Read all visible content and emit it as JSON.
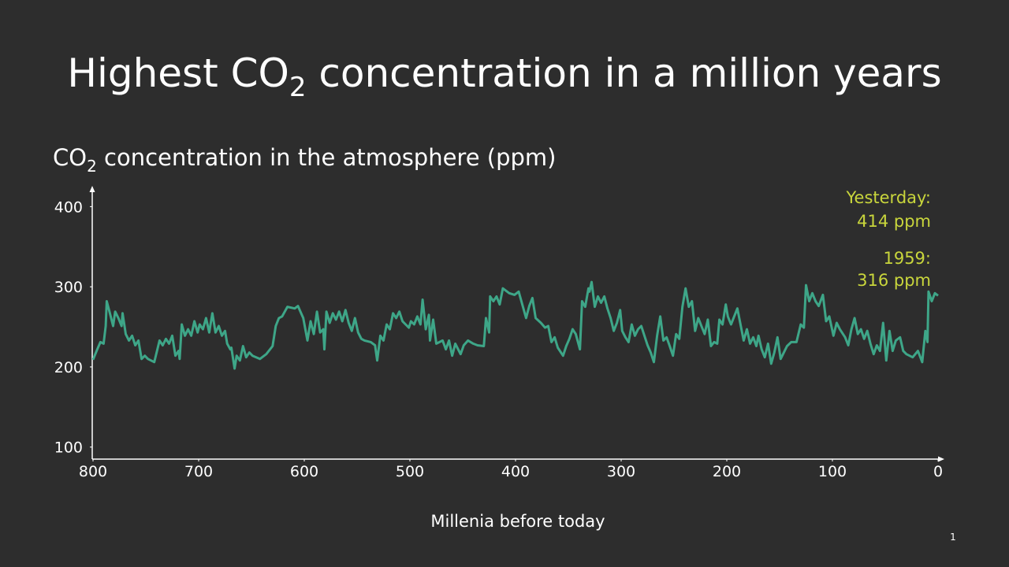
{
  "chart_data": {
    "type": "line",
    "title": [
      "Highest CO",
      "2",
      " concentration in a million years"
    ],
    "y_label": [
      "CO",
      "2",
      " concentration in the atmosphere (ppm)"
    ],
    "x_label": "Millenia before today",
    "annotations": [
      [
        "Yesterday:",
        "414 ppm"
      ],
      [
        "1959:",
        "316 ppm"
      ]
    ],
    "annotation_color": "#c9d63c",
    "page_number": "1",
    "xlim": [
      800,
      0
    ],
    "xticks": [
      800,
      700,
      600,
      500,
      400,
      300,
      200,
      100,
      0
    ],
    "ylim": [
      85,
      422
    ],
    "yticks": [
      100,
      200,
      300,
      400
    ],
    "grid": false,
    "x": [
      800,
      796,
      793,
      790,
      788,
      787,
      784,
      781,
      779,
      776,
      773,
      772,
      769,
      766,
      763,
      760,
      757,
      754,
      751,
      748,
      742,
      737,
      734,
      731,
      728,
      725,
      722,
      719,
      718,
      716,
      713,
      710,
      707,
      704,
      701,
      699,
      696,
      693,
      690,
      687,
      684,
      681,
      678,
      675,
      673,
      670,
      669,
      666,
      664,
      661,
      658,
      655,
      652,
      649,
      642,
      636,
      630,
      627,
      624,
      621,
      616,
      609,
      606,
      601,
      597,
      594,
      591,
      588,
      585,
      582,
      581,
      579,
      576,
      573,
      570,
      567,
      564,
      561,
      558,
      555,
      552,
      549,
      546,
      543,
      537,
      533,
      531,
      528,
      525,
      522,
      519,
      516,
      513,
      510,
      507,
      504,
      501,
      499,
      496,
      493,
      490,
      488,
      485,
      482,
      481,
      478,
      475,
      472,
      469,
      466,
      463,
      460,
      457,
      452,
      449,
      445,
      440,
      436,
      430,
      428,
      425,
      424,
      421,
      418,
      415,
      412,
      406,
      401,
      397,
      393,
      390,
      387,
      384,
      381,
      376,
      372,
      369,
      366,
      363,
      360,
      355,
      352,
      349,
      346,
      343,
      339,
      337,
      334,
      331,
      330,
      328,
      325,
      322,
      319,
      316,
      313,
      310,
      307,
      304,
      301,
      299,
      296,
      293,
      290,
      287,
      284,
      281,
      278,
      275,
      272,
      269,
      266,
      263,
      260,
      257,
      254,
      251,
      248,
      245,
      242,
      239,
      236,
      233,
      230,
      227,
      224,
      221,
      218,
      215,
      212,
      209,
      207,
      204,
      201,
      199,
      196,
      193,
      190,
      187,
      184,
      181,
      178,
      175,
      172,
      170,
      167,
      164,
      161,
      158,
      155,
      152,
      149,
      146,
      143,
      139,
      134,
      130,
      127,
      125,
      122,
      119,
      116,
      113,
      109,
      106,
      103,
      99,
      96,
      93,
      88,
      85,
      82,
      79,
      76,
      73,
      70,
      67,
      64,
      61,
      58,
      55,
      52,
      49,
      46,
      43,
      40,
      36,
      33,
      30,
      24,
      19,
      15,
      12,
      10,
      9,
      6,
      3,
      0
    ],
    "series": [
      {
        "color": "#3ea688",
        "values": [
          209,
          222,
          231,
          229,
          251,
          282,
          267,
          251,
          269,
          261,
          251,
          267,
          241,
          233,
          239,
          227,
          233,
          210,
          214,
          210,
          206,
          233,
          227,
          235,
          229,
          239,
          214,
          220,
          210,
          253,
          239,
          247,
          239,
          257,
          243,
          253,
          247,
          261,
          243,
          267,
          243,
          251,
          239,
          245,
          229,
          222,
          224,
          198,
          214,
          208,
          226,
          212,
          218,
          214,
          210,
          216,
          226,
          251,
          261,
          263,
          275,
          273,
          276,
          261,
          233,
          257,
          241,
          269,
          243,
          247,
          222,
          269,
          255,
          267,
          259,
          269,
          257,
          271,
          255,
          245,
          261,
          243,
          235,
          233,
          231,
          227,
          208,
          239,
          233,
          253,
          247,
          267,
          261,
          269,
          257,
          253,
          249,
          257,
          253,
          263,
          253,
          284,
          247,
          265,
          233,
          259,
          229,
          231,
          233,
          222,
          233,
          214,
          229,
          216,
          227,
          233,
          229,
          227,
          226,
          261,
          243,
          288,
          282,
          288,
          278,
          298,
          292,
          290,
          294,
          275,
          261,
          276,
          286,
          261,
          255,
          249,
          251,
          231,
          237,
          224,
          214,
          226,
          235,
          247,
          241,
          222,
          282,
          275,
          298,
          294,
          306,
          275,
          288,
          280,
          288,
          273,
          261,
          245,
          255,
          271,
          245,
          237,
          231,
          253,
          239,
          247,
          251,
          239,
          227,
          218,
          206,
          239,
          263,
          233,
          237,
          226,
          214,
          241,
          235,
          275,
          298,
          275,
          282,
          245,
          261,
          251,
          241,
          259,
          226,
          231,
          229,
          259,
          253,
          278,
          263,
          253,
          263,
          273,
          253,
          233,
          247,
          229,
          237,
          226,
          239,
          222,
          212,
          229,
          204,
          218,
          237,
          210,
          218,
          226,
          231,
          231,
          253,
          249,
          302,
          282,
          292,
          282,
          276,
          290,
          257,
          263,
          239,
          255,
          247,
          237,
          227,
          247,
          261,
          241,
          247,
          235,
          245,
          229,
          216,
          227,
          220,
          255,
          208,
          245,
          220,
          233,
          237,
          220,
          216,
          212,
          220,
          206,
          245,
          231,
          294,
          282,
          292,
          289
        ]
      }
    ]
  }
}
